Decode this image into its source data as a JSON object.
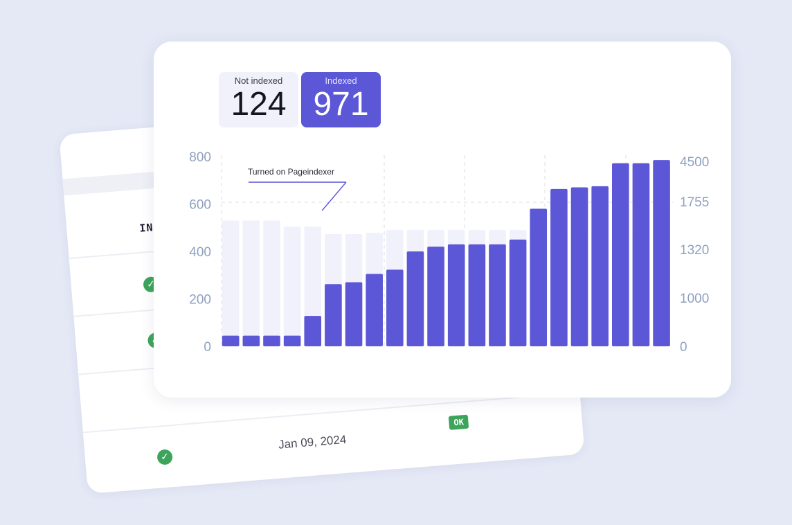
{
  "stats": {
    "not_indexed_label": "Not indexed",
    "not_indexed_value": "124",
    "indexed_label": "Indexed",
    "indexed_value": "971"
  },
  "back_card": {
    "column_header": "IND",
    "date": "Jan 09, 2024",
    "status_badge": "OK",
    "check_icon": "check-circle-icon",
    "status_color": "#3ea45b"
  },
  "colors": {
    "background": "#e5e9f6",
    "indexed_bar": "#5b57d6",
    "total_bar": "#f1f1fb",
    "tick_text": "#8fa0c0"
  },
  "chart_data": {
    "type": "bar",
    "annotation": "Turned on Pageindexer",
    "annotation_index": 5,
    "y_left_ticks": [
      "0",
      "200",
      "400",
      "600",
      "800"
    ],
    "y_right_ticks": [
      "0",
      "1000",
      "1320",
      "1755",
      "4500"
    ],
    "ylim": [
      0,
      800
    ],
    "grid": "dashed",
    "series": [
      {
        "values": [
          530,
          530,
          530,
          505,
          505,
          473,
          473,
          478,
          490,
          490,
          490,
          490,
          490,
          490,
          490,
          490,
          490,
          490,
          490,
          490,
          490,
          490
        ]
      },
      {
        "values": [
          45,
          45,
          45,
          45,
          128,
          262,
          270,
          305,
          323,
          400,
          420,
          430,
          430,
          430,
          450,
          580,
          663,
          670,
          675,
          772,
          772,
          785
        ]
      }
    ]
  }
}
